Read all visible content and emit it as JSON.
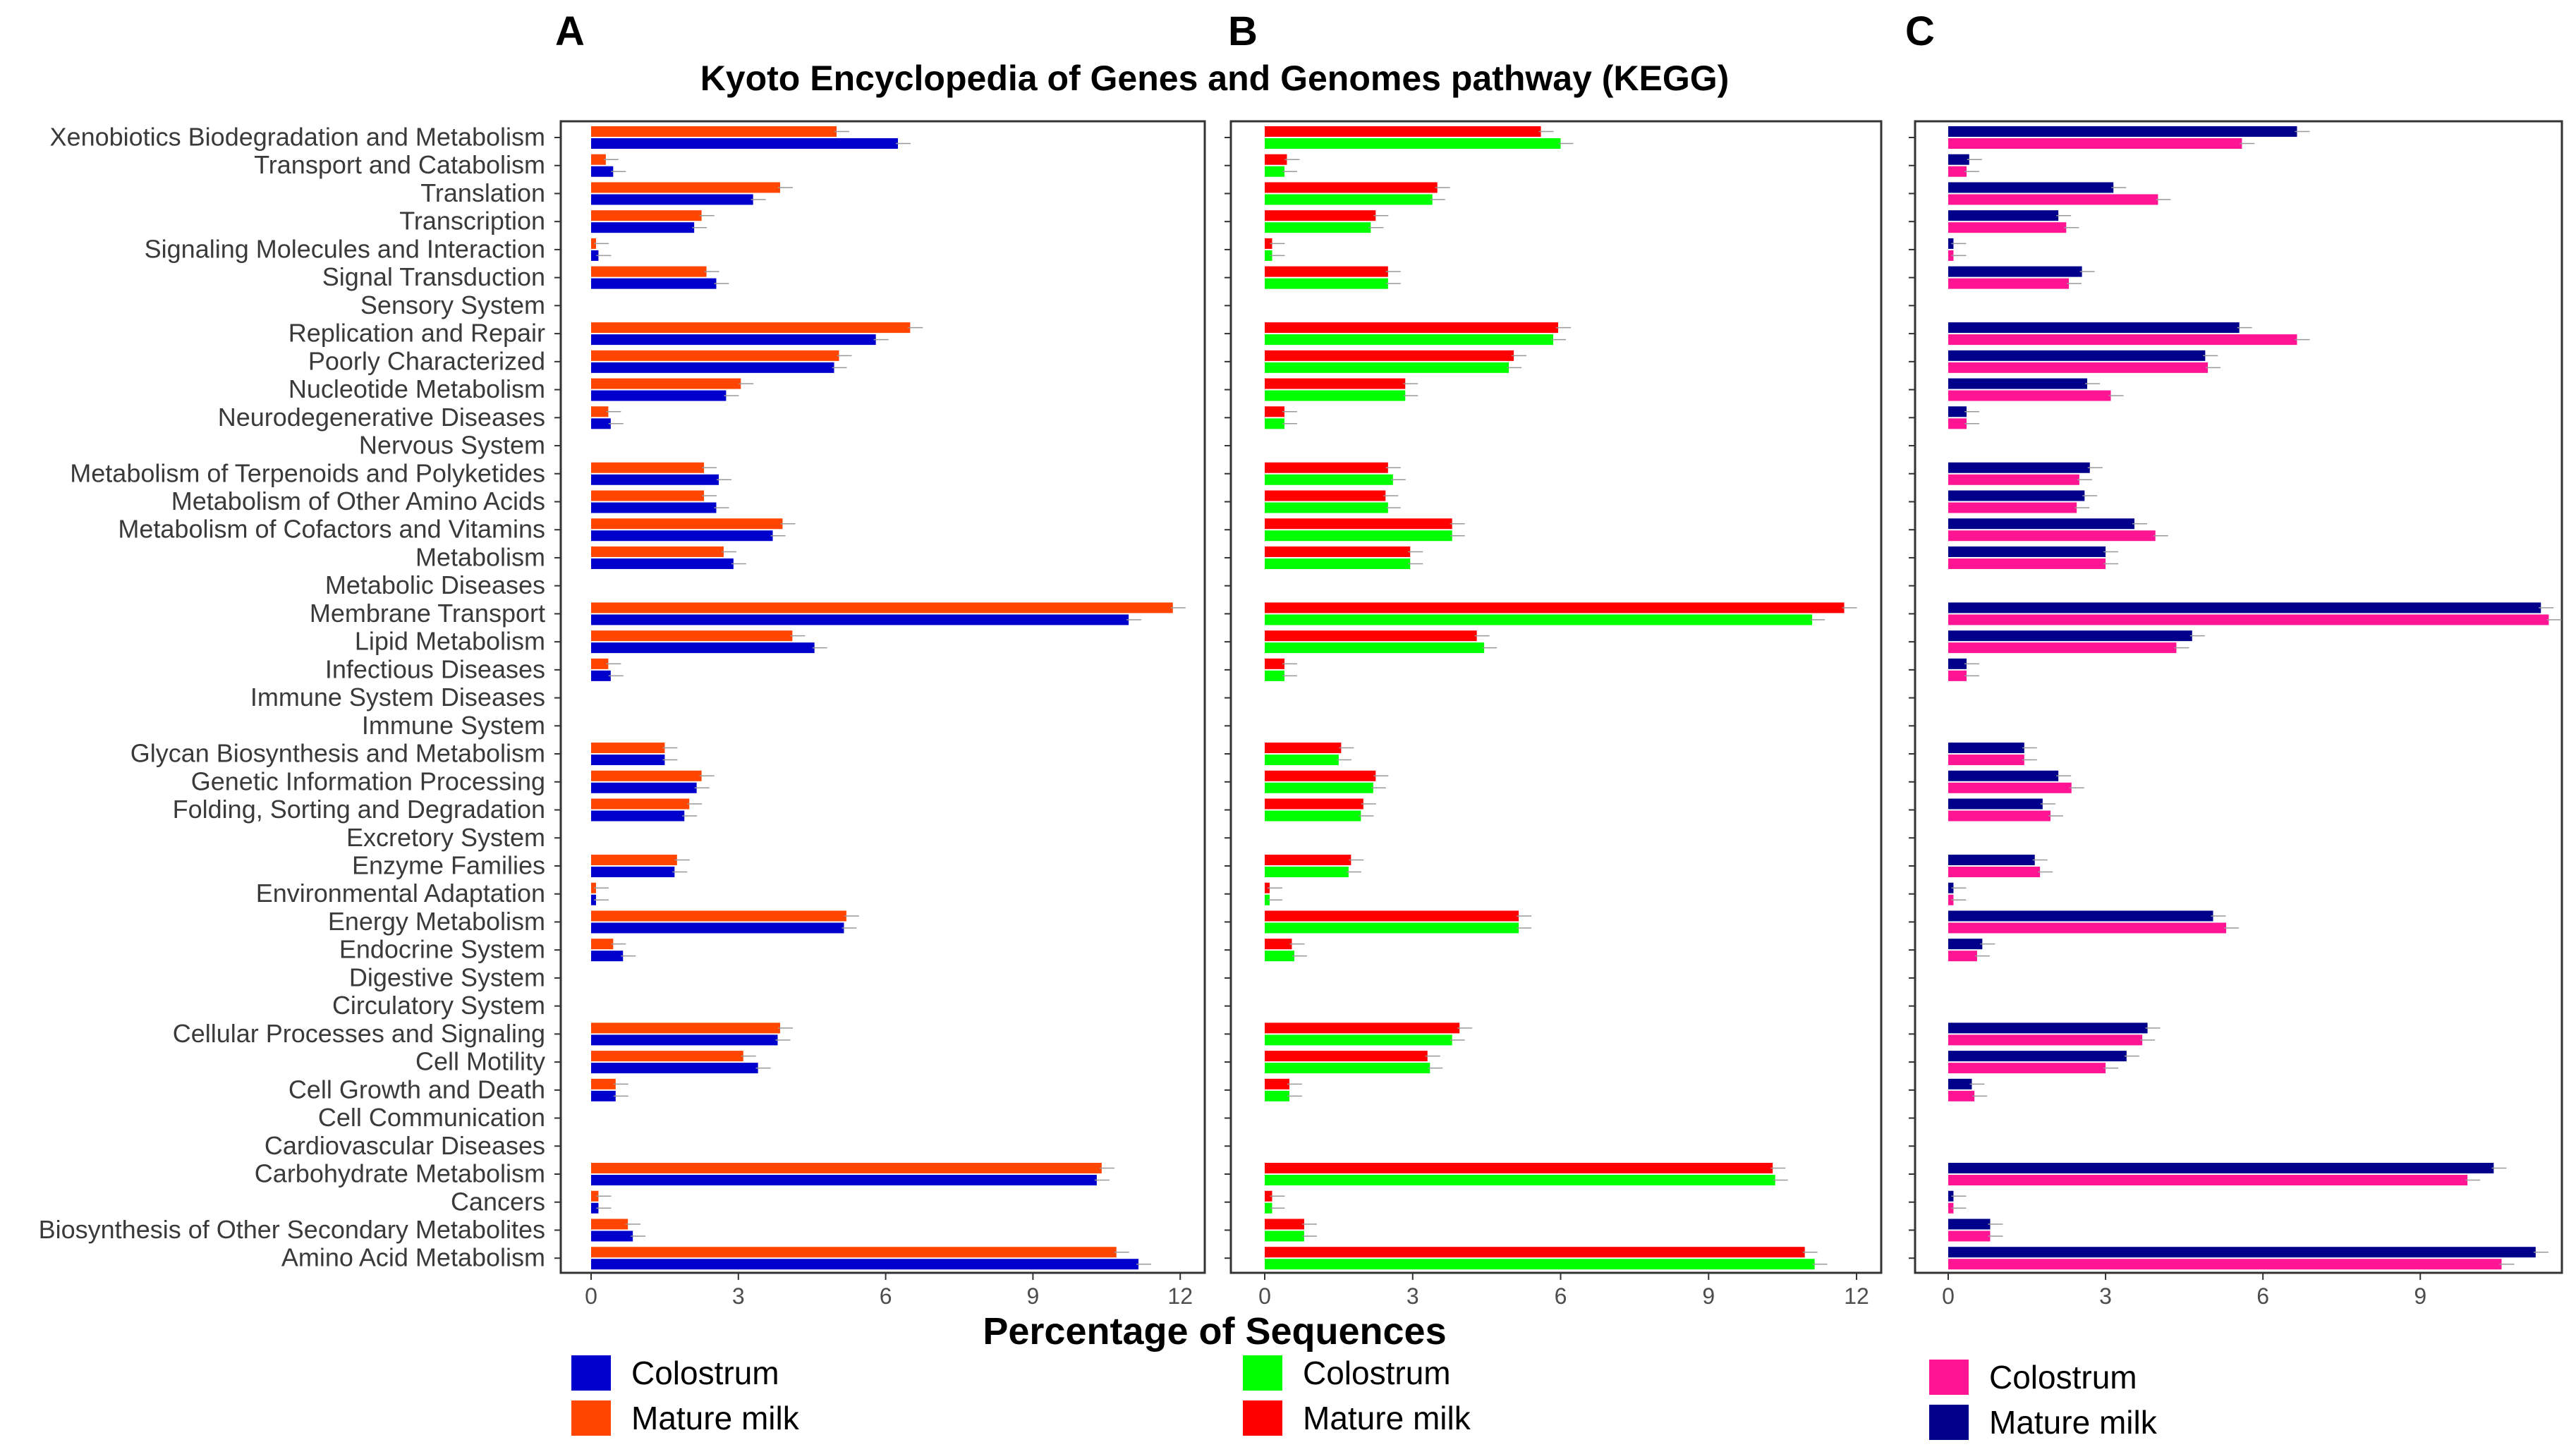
{
  "title": "Kyoto Encyclopedia of Genes and Genomes pathway (KEGG)",
  "xlabel": "Percentage of Sequences",
  "categories": [
    "Xenobiotics Biodegradation and Metabolism",
    "Transport and Catabolism",
    "Translation",
    "Transcription",
    "Signaling Molecules and Interaction",
    "Signal Transduction",
    "Sensory System",
    "Replication and Repair",
    "Poorly Characterized",
    "Nucleotide Metabolism",
    "Neurodegenerative Diseases",
    "Nervous System",
    "Metabolism of Terpenoids and Polyketides",
    "Metabolism of Other Amino Acids",
    "Metabolism of Cofactors and Vitamins",
    "Metabolism",
    "Metabolic Diseases",
    "Membrane Transport",
    "Lipid Metabolism",
    "Infectious Diseases",
    "Immune System Diseases",
    "Immune System",
    "Glycan Biosynthesis and Metabolism",
    "Genetic Information Processing",
    "Folding, Sorting and Degradation",
    "Excretory System",
    "Enzyme Families",
    "Environmental Adaptation",
    "Energy Metabolism",
    "Endocrine System",
    "Digestive System",
    "Circulatory System",
    "Cellular Processes and Signaling",
    "Cell Motility",
    "Cell Growth and Death",
    "Cell Communication",
    "Cardiovascular Diseases",
    "Carbohydrate Metabolism",
    "Cancers",
    "Biosynthesis of Other Secondary Metabolites",
    "Amino Acid Metabolism"
  ],
  "chart_data": [
    {
      "type": "bar",
      "panel": "A",
      "orientation": "horizontal",
      "xlim": [
        0,
        12.5
      ],
      "xticks": [
        "0",
        "3",
        "6",
        "9",
        "12"
      ],
      "series": [
        {
          "name": "Mature milk",
          "color": "#ff4500",
          "values": [
            5.0,
            0.3,
            3.85,
            2.25,
            0.1,
            2.35,
            0,
            6.5,
            5.05,
            3.05,
            0.35,
            0,
            2.3,
            2.3,
            3.9,
            2.7,
            0,
            11.85,
            4.1,
            0.35,
            0,
            0,
            1.5,
            2.25,
            2.0,
            0,
            1.75,
            0.1,
            5.2,
            0.45,
            0,
            0,
            3.85,
            3.1,
            0.5,
            0,
            0,
            10.4,
            0.15,
            0.75,
            10.7
          ]
        },
        {
          "name": "Colostrum",
          "color": "#0000cd",
          "values": [
            6.25,
            0.45,
            3.3,
            2.1,
            0.15,
            2.55,
            0,
            5.8,
            4.95,
            2.75,
            0.4,
            0,
            2.6,
            2.55,
            3.7,
            2.9,
            0,
            10.95,
            4.55,
            0.4,
            0,
            0,
            1.5,
            2.15,
            1.9,
            0,
            1.7,
            0.1,
            5.15,
            0.65,
            0,
            0,
            3.8,
            3.4,
            0.5,
            0,
            0,
            10.3,
            0.15,
            0.85,
            11.15
          ]
        }
      ]
    },
    {
      "type": "bar",
      "panel": "B",
      "orientation": "horizontal",
      "xlim": [
        0,
        12.5
      ],
      "xticks": [
        "0",
        "3",
        "6",
        "9",
        "12"
      ],
      "series": [
        {
          "name": "Mature milk",
          "color": "#ff0000",
          "values": [
            5.6,
            0.45,
            3.5,
            2.25,
            0.15,
            2.5,
            0,
            5.95,
            5.05,
            2.85,
            0.4,
            0,
            2.5,
            2.45,
            3.8,
            2.95,
            0,
            11.75,
            4.3,
            0.4,
            0,
            0,
            1.55,
            2.25,
            2.0,
            0,
            1.75,
            0.1,
            5.15,
            0.55,
            0,
            0,
            3.95,
            3.3,
            0.5,
            0,
            0,
            10.3,
            0.15,
            0.8,
            10.95
          ]
        },
        {
          "name": "Colostrum",
          "color": "#00ff00",
          "values": [
            6.0,
            0.4,
            3.4,
            2.15,
            0.15,
            2.5,
            0,
            5.85,
            4.95,
            2.85,
            0.4,
            0,
            2.6,
            2.5,
            3.8,
            2.95,
            0,
            11.1,
            4.45,
            0.4,
            0,
            0,
            1.5,
            2.2,
            1.95,
            0,
            1.7,
            0.1,
            5.15,
            0.6,
            0,
            0,
            3.8,
            3.35,
            0.5,
            0,
            0,
            10.35,
            0.15,
            0.8,
            11.15
          ]
        }
      ]
    },
    {
      "type": "bar",
      "panel": "C",
      "orientation": "horizontal",
      "xlim": [
        0,
        11.7
      ],
      "xticks": [
        "0",
        "3",
        "6",
        "9"
      ],
      "series": [
        {
          "name": "Mature milk",
          "color": "#00008b",
          "values": [
            6.65,
            0.4,
            3.15,
            2.1,
            0.1,
            2.55,
            0,
            5.55,
            4.9,
            2.65,
            0.35,
            0,
            2.7,
            2.6,
            3.55,
            3.0,
            0,
            11.3,
            4.65,
            0.35,
            0,
            0,
            1.45,
            2.1,
            1.8,
            0,
            1.65,
            0.1,
            5.05,
            0.65,
            0,
            0,
            3.8,
            3.4,
            0.45,
            0,
            0,
            10.4,
            0.1,
            0.8,
            11.2
          ]
        },
        {
          "name": "Colostrum",
          "color": "#ff1493",
          "values": [
            5.6,
            0.35,
            4.0,
            2.25,
            0.1,
            2.3,
            0,
            6.65,
            4.95,
            3.1,
            0.35,
            0,
            2.5,
            2.45,
            3.95,
            3.0,
            0,
            11.45,
            4.35,
            0.35,
            0,
            0,
            1.45,
            2.35,
            1.95,
            0,
            1.75,
            0.1,
            5.3,
            0.55,
            0,
            0,
            3.7,
            3.0,
            0.5,
            0,
            0,
            9.9,
            0.1,
            0.8,
            10.55
          ]
        }
      ]
    }
  ],
  "legends": [
    {
      "panel": "A",
      "items": [
        {
          "label": "Colostrum",
          "color": "#0000cd"
        },
        {
          "label": "Mature milk",
          "color": "#ff4500"
        }
      ]
    },
    {
      "panel": "B",
      "items": [
        {
          "label": "Colostrum",
          "color": "#00ff00"
        },
        {
          "label": "Mature milk",
          "color": "#ff0000"
        }
      ]
    },
    {
      "panel": "C",
      "items": [
        {
          "label": "Colostrum",
          "color": "#ff1493"
        },
        {
          "label": "Mature milk",
          "color": "#00008b"
        }
      ]
    }
  ]
}
